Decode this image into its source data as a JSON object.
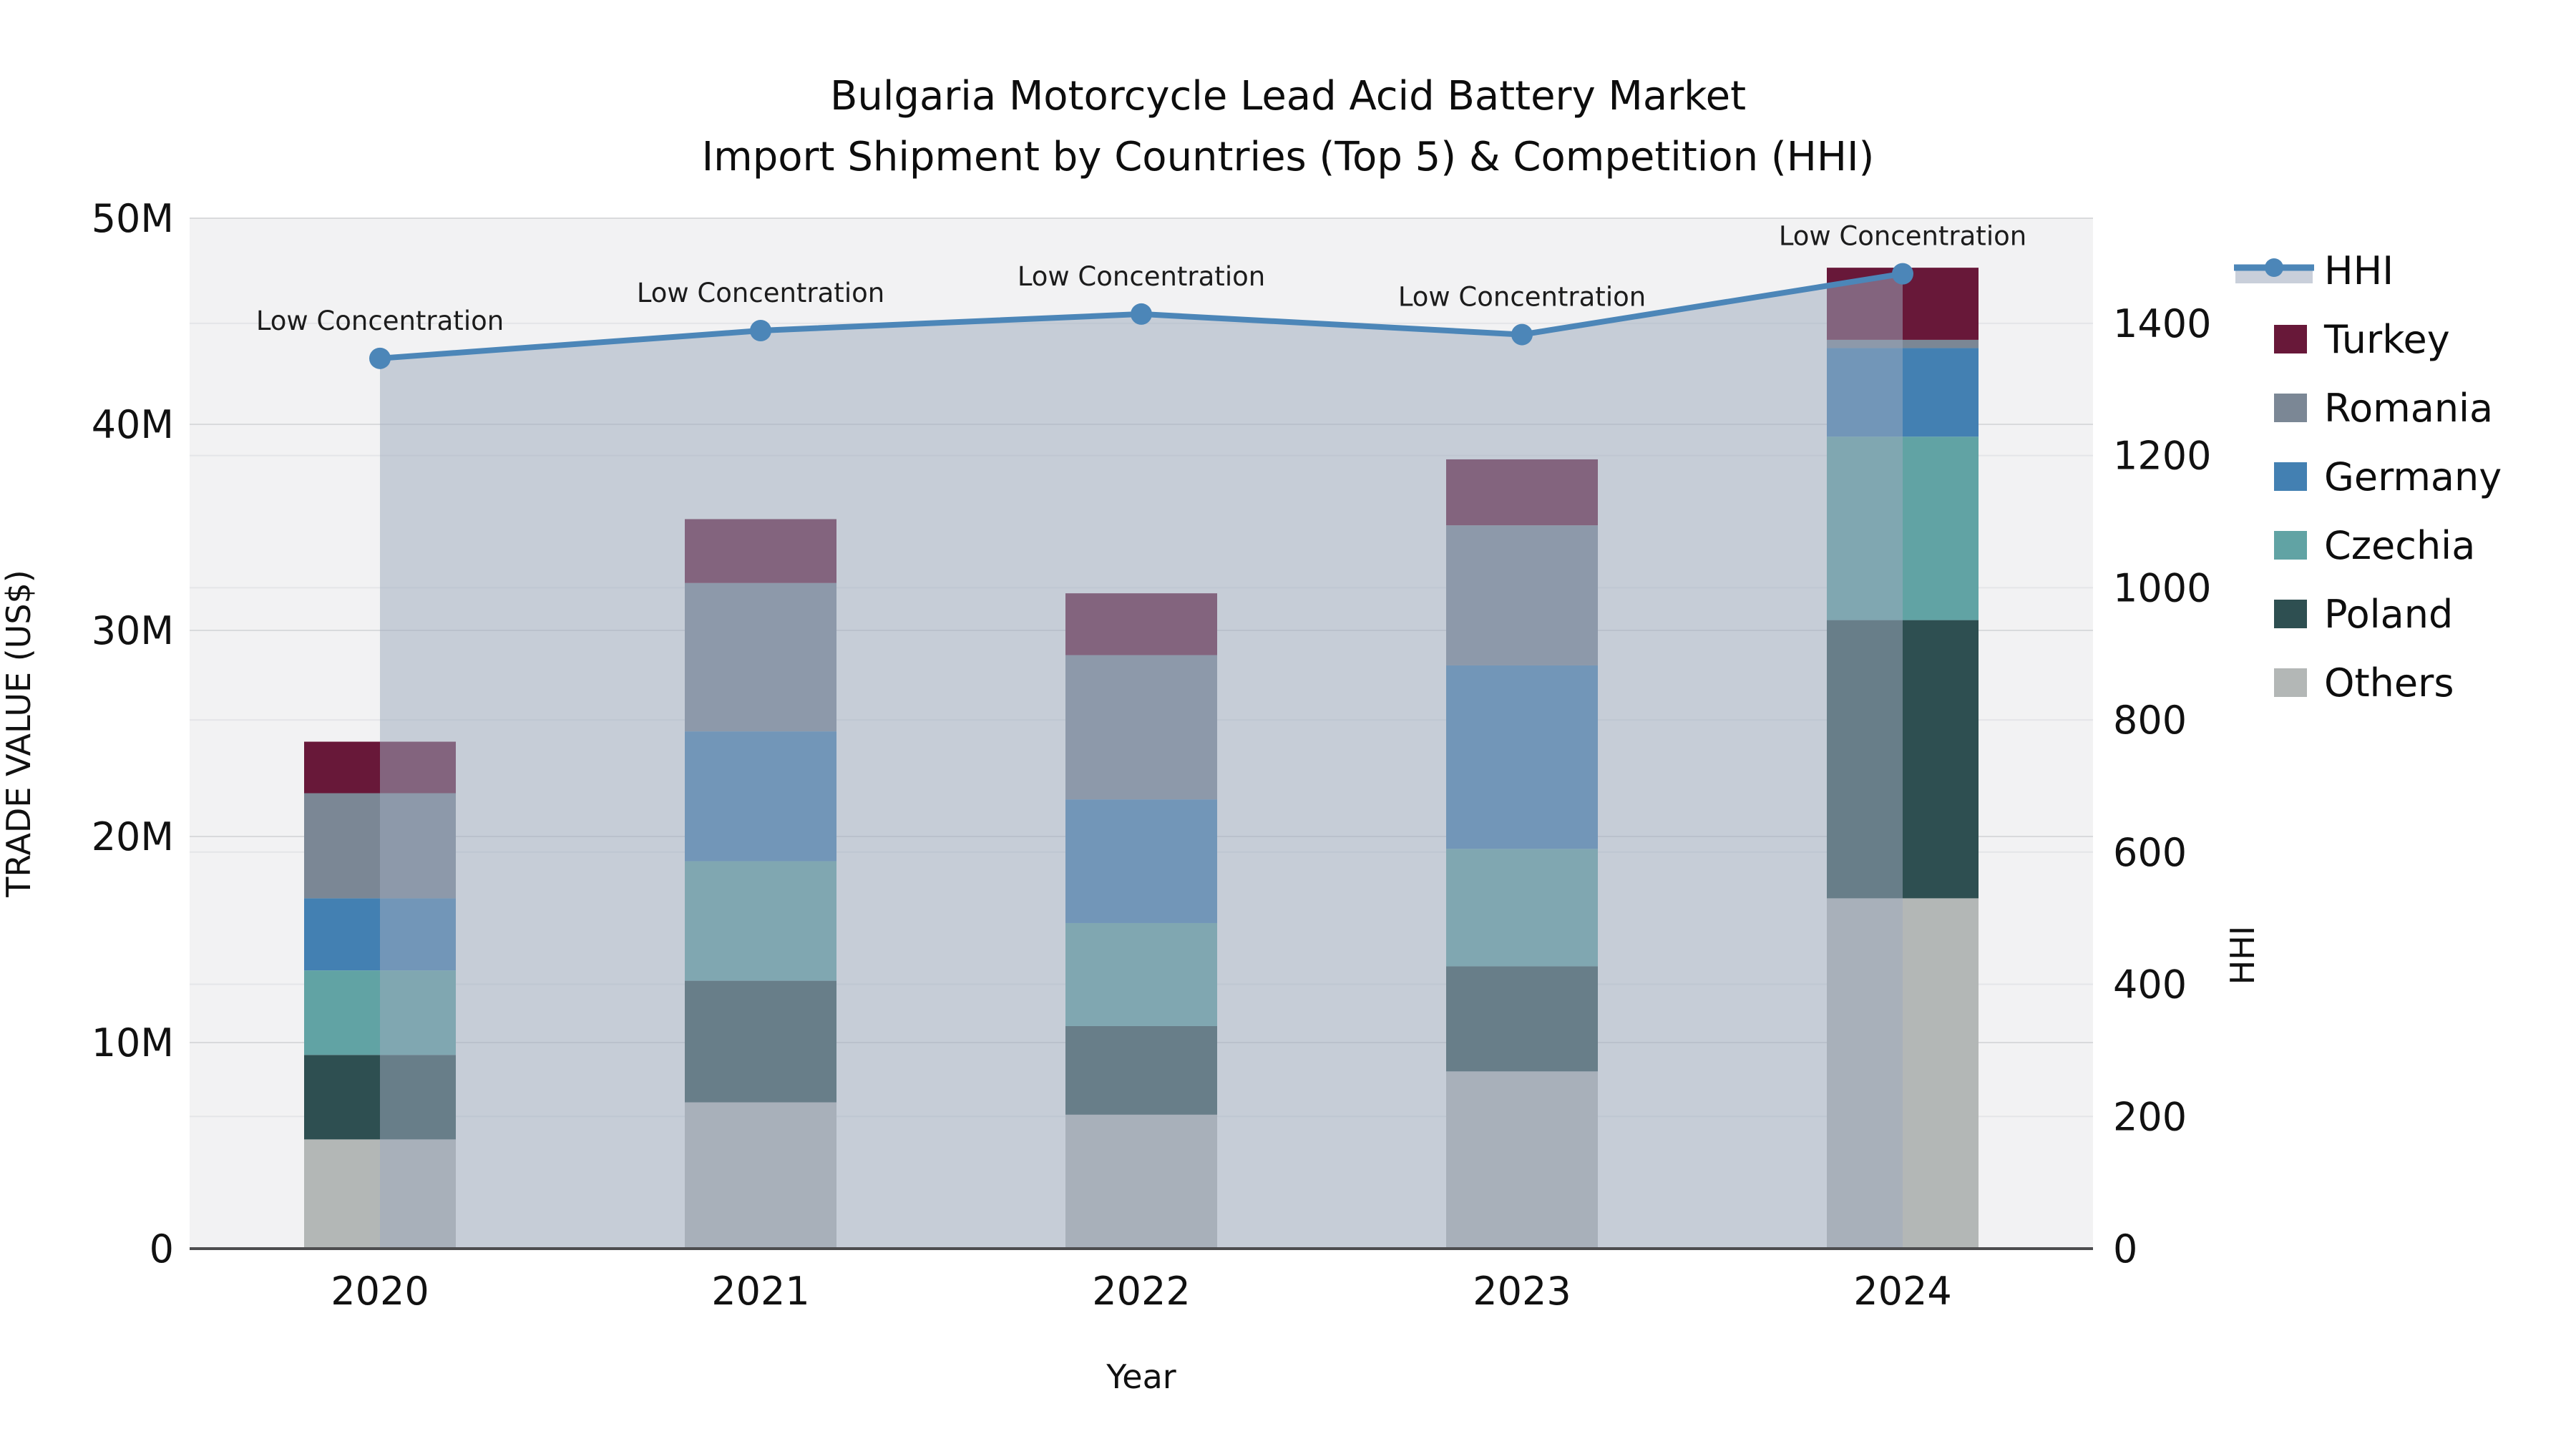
{
  "title": {
    "line1": "Bulgaria Motorcycle Lead Acid Battery Market",
    "line2": "Import Shipment by Countries (Top 5) & Competition (HHI)"
  },
  "axes": {
    "x": {
      "title": "Year",
      "categories": [
        "2020",
        "2021",
        "2022",
        "2023",
        "2024"
      ]
    },
    "y_left": {
      "title": "TRADE VALUE (US$)",
      "tick_labels": [
        "0",
        "10M",
        "20M",
        "30M",
        "40M",
        "50M"
      ],
      "tick_values_m": [
        0,
        10,
        20,
        30,
        40,
        50
      ],
      "range_m": [
        0,
        50
      ]
    },
    "y_right": {
      "title": "HHI",
      "tick_labels": [
        "0",
        "200",
        "400",
        "600",
        "800",
        "1000",
        "1200",
        "1400"
      ],
      "tick_values": [
        0,
        200,
        400,
        600,
        800,
        1000,
        1200,
        1400
      ],
      "range": [
        0,
        1559
      ]
    }
  },
  "legend": {
    "items": [
      {
        "label": "HHI",
        "type": "line",
        "color": "#4C86B8",
        "band_color": "#C9CFDA"
      },
      {
        "label": "Turkey",
        "type": "swatch",
        "color": "#681839"
      },
      {
        "label": "Romania",
        "type": "swatch",
        "color": "#7B8795"
      },
      {
        "label": "Germany",
        "type": "swatch",
        "color": "#4380B2"
      },
      {
        "label": "Czechia",
        "type": "swatch",
        "color": "#61A3A4"
      },
      {
        "label": "Poland",
        "type": "swatch",
        "color": "#2E4F51"
      },
      {
        "label": "Others",
        "type": "swatch",
        "color": "#B3B7B6"
      }
    ]
  },
  "chart_data": {
    "type": "stacked-bar+line",
    "categories": [
      "2020",
      "2021",
      "2022",
      "2023",
      "2024"
    ],
    "value_unit": "million US$",
    "stack_order_bottom_to_top": [
      "Others",
      "Poland",
      "Czechia",
      "Germany",
      "Romania",
      "Turkey"
    ],
    "series": [
      {
        "name": "Others",
        "color": "#B3B7B6",
        "values_m": [
          5.3,
          7.1,
          6.5,
          8.6,
          17.0
        ]
      },
      {
        "name": "Poland",
        "color": "#2E4F51",
        "values_m": [
          4.1,
          5.9,
          4.3,
          5.1,
          13.5
        ]
      },
      {
        "name": "Czechia",
        "color": "#61A3A4",
        "values_m": [
          4.1,
          5.8,
          5.0,
          5.7,
          8.9
        ]
      },
      {
        "name": "Germany",
        "color": "#4380B2",
        "values_m": [
          3.5,
          6.3,
          6.0,
          8.9,
          4.3
        ]
      },
      {
        "name": "Romania",
        "color": "#7B8795",
        "values_m": [
          5.1,
          7.2,
          7.0,
          6.8,
          0.4
        ]
      },
      {
        "name": "Turkey",
        "color": "#681839",
        "values_m": [
          2.5,
          3.1,
          3.0,
          3.2,
          3.5
        ]
      }
    ],
    "totals_m": [
      24.6,
      35.4,
      31.8,
      38.3,
      47.6
    ],
    "line_series": {
      "name": "HHI",
      "color": "#4C86B8",
      "area_fill_color": "rgba(158,170,190,0.52)",
      "values": [
        1347,
        1389,
        1414,
        1383,
        1475
      ]
    },
    "annotations": [
      {
        "year": "2020",
        "text": "Low Concentration"
      },
      {
        "year": "2021",
        "text": "Low Concentration"
      },
      {
        "year": "2022",
        "text": "Low Concentration"
      },
      {
        "year": "2023",
        "text": "Low Concentration"
      },
      {
        "year": "2024",
        "text": "Low Concentration"
      }
    ],
    "grid": true,
    "legend_position": "right",
    "ylim_left_m": [
      0,
      50
    ],
    "ylim_right": [
      0,
      1559
    ]
  },
  "colors": {
    "figure_bg": "#FFFFFF",
    "plot_bg": "#F2F2F3",
    "grid_left_axis": "#D9DADC",
    "grid_right_axis": "#E4E5E8",
    "baseline": "#4D4D4F",
    "text": "#111111",
    "annotation_text": "#1C1C1C"
  }
}
